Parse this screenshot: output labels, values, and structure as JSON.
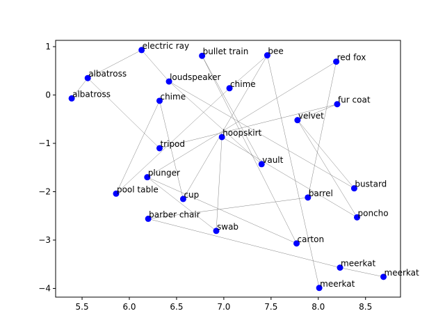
{
  "chart_data": {
    "type": "scatter",
    "title": "",
    "xlabel": "",
    "ylabel": "",
    "xlim": [
      5.22,
      8.87
    ],
    "ylim": [
      -4.18,
      1.13
    ],
    "xticks": [
      5.5,
      6.0,
      6.5,
      7.0,
      7.5,
      8.0,
      8.5
    ],
    "yticks": [
      1,
      0,
      -1,
      -2,
      -3,
      -4
    ],
    "grid": false,
    "point_color": "#0000ff",
    "edge_color": "#808080",
    "points": [
      {
        "label": "electric ray",
        "x": 6.13,
        "y": 0.93
      },
      {
        "label": "bullet train",
        "x": 6.77,
        "y": 0.81
      },
      {
        "label": "bee",
        "x": 7.46,
        "y": 0.82
      },
      {
        "label": "red fox",
        "x": 8.19,
        "y": 0.69
      },
      {
        "label": "albatross",
        "x": 5.56,
        "y": 0.35
      },
      {
        "label": "loudspeaker",
        "x": 6.42,
        "y": 0.28
      },
      {
        "label": "chime",
        "x": 7.06,
        "y": 0.14
      },
      {
        "label": "albatross",
        "x": 5.39,
        "y": -0.07
      },
      {
        "label": "chime",
        "x": 6.32,
        "y": -0.12
      },
      {
        "label": "fur coat",
        "x": 8.2,
        "y": -0.19
      },
      {
        "label": "velvet",
        "x": 7.78,
        "y": -0.52
      },
      {
        "label": "hoopskirt",
        "x": 6.98,
        "y": -0.87
      },
      {
        "label": "tripod",
        "x": 6.32,
        "y": -1.1
      },
      {
        "label": "vault",
        "x": 7.4,
        "y": -1.43
      },
      {
        "label": "plunger",
        "x": 6.19,
        "y": -1.7
      },
      {
        "label": "bustard",
        "x": 8.38,
        "y": -1.93
      },
      {
        "label": "pool table",
        "x": 5.86,
        "y": -2.04
      },
      {
        "label": "barrel",
        "x": 7.89,
        "y": -2.12
      },
      {
        "label": "cup",
        "x": 6.57,
        "y": -2.15
      },
      {
        "label": "poncho",
        "x": 8.41,
        "y": -2.53
      },
      {
        "label": "barber chair",
        "x": 6.2,
        "y": -2.56
      },
      {
        "label": "swab",
        "x": 6.92,
        "y": -2.81
      },
      {
        "label": "carton",
        "x": 7.77,
        "y": -3.07
      },
      {
        "label": "meerkat",
        "x": 8.23,
        "y": -3.57
      },
      {
        "label": "meerkat",
        "x": 8.69,
        "y": -3.76
      },
      {
        "label": "meerkat",
        "x": 8.01,
        "y": -3.99
      }
    ],
    "edges": [
      [
        7,
        4
      ],
      [
        4,
        0
      ],
      [
        0,
        5
      ],
      [
        5,
        13
      ],
      [
        13,
        1
      ],
      [
        1,
        22
      ],
      [
        22,
        14
      ],
      [
        14,
        3
      ],
      [
        4,
        12
      ],
      [
        12,
        9
      ],
      [
        9,
        10
      ],
      [
        10,
        15
      ],
      [
        15,
        5
      ],
      [
        6,
        2
      ],
      [
        2,
        18
      ],
      [
        18,
        8
      ],
      [
        8,
        16
      ],
      [
        16,
        6
      ],
      [
        2,
        25
      ],
      [
        20,
        23
      ],
      [
        23,
        24
      ],
      [
        20,
        17
      ],
      [
        17,
        3
      ],
      [
        11,
        19
      ],
      [
        19,
        10
      ],
      [
        11,
        21
      ],
      [
        21,
        14
      ]
    ]
  }
}
